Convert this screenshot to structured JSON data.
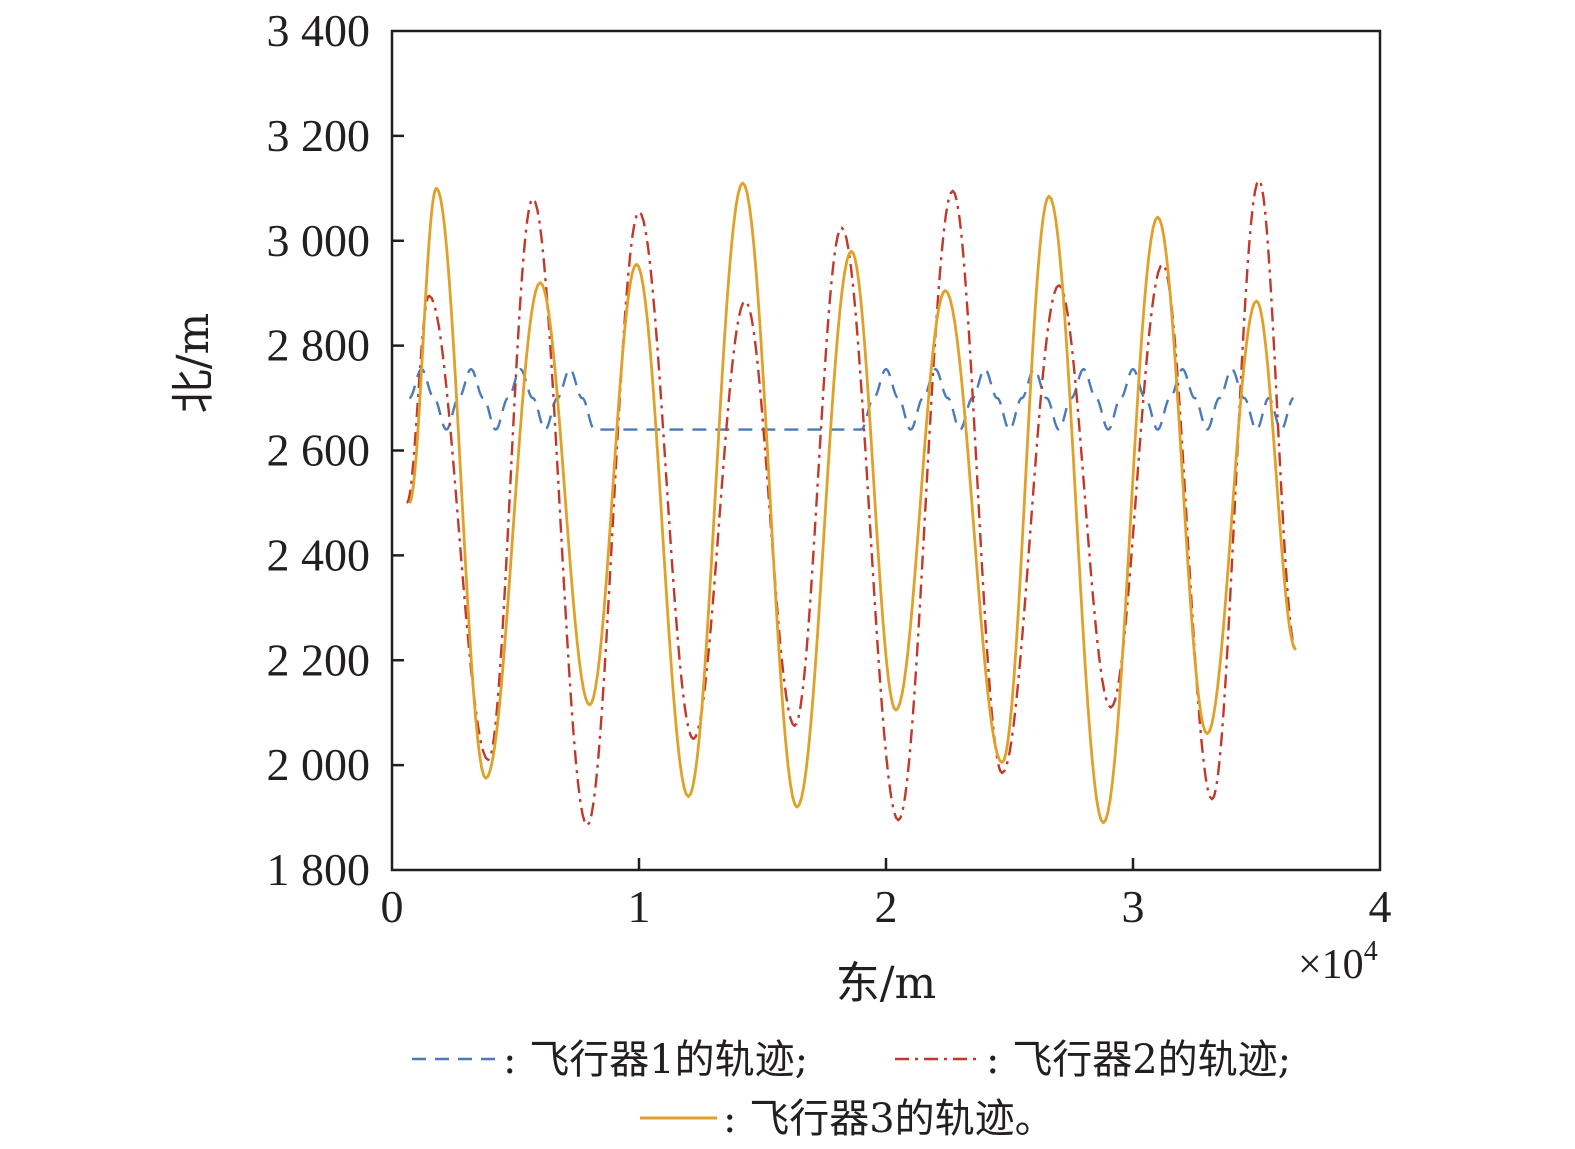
{
  "chart_data": {
    "type": "line",
    "xlabel": "东/m",
    "ylabel": "北/m",
    "x_multiplier": "×10",
    "x_multiplier_exp": "4",
    "xlim": [
      0,
      4
    ],
    "ylim": [
      1800,
      3400
    ],
    "x_ticks": [
      "0",
      "1",
      "2",
      "3",
      "4"
    ],
    "y_ticks": [
      "1 800",
      "2 000",
      "2 200",
      "2 400",
      "2 600",
      "2 800",
      "3 000",
      "3 200",
      "3 400"
    ],
    "legend_placement": "bottom",
    "series": [
      {
        "name": "飞行器1的轨迹;",
        "legend_label": ": 飞行器1的轨迹;",
        "color": "#4a7bb7",
        "style": "dashed",
        "x": [
          0.07,
          0.12,
          0.17,
          0.22,
          0.27,
          0.32,
          0.37,
          0.42,
          0.47,
          0.52,
          0.57,
          0.62,
          0.67,
          0.72,
          0.77,
          0.82,
          0.87,
          0.92,
          0.95,
          1.2,
          1.5,
          1.8,
          1.9,
          1.95,
          2.0,
          2.05,
          2.1,
          2.15,
          2.2,
          2.25,
          2.3,
          2.35,
          2.4,
          2.45,
          2.5,
          2.55,
          2.6,
          2.65,
          2.7,
          2.75,
          2.8,
          2.85,
          2.9,
          2.95,
          3.0,
          3.05,
          3.1,
          3.15,
          3.2,
          3.25,
          3.3,
          3.35,
          3.4,
          3.45,
          3.5,
          3.55,
          3.6,
          3.65
        ],
        "y": [
          2700,
          2755,
          2700,
          2640,
          2700,
          2755,
          2700,
          2640,
          2700,
          2755,
          2700,
          2640,
          2700,
          2755,
          2700,
          2640,
          2640,
          2640,
          2640,
          2640,
          2640,
          2640,
          2640,
          2700,
          2755,
          2700,
          2640,
          2700,
          2755,
          2700,
          2640,
          2700,
          2755,
          2700,
          2640,
          2700,
          2755,
          2700,
          2640,
          2700,
          2755,
          2700,
          2640,
          2700,
          2755,
          2700,
          2640,
          2700,
          2755,
          2700,
          2640,
          2700,
          2755,
          2700,
          2640,
          2700,
          2640,
          2700
        ]
      },
      {
        "name": "飞行器2的轨迹;",
        "legend_label": ": 飞行器2的轨迹;",
        "color": "#c0392b",
        "style": "dashdot",
        "x": [
          0.06,
          0.15,
          0.39,
          0.57,
          0.79,
          1.0,
          1.22,
          1.43,
          1.63,
          1.82,
          2.05,
          2.27,
          2.47,
          2.7,
          2.91,
          3.12,
          3.32,
          3.51,
          3.66
        ],
        "y": [
          2500,
          2895,
          2010,
          3080,
          1885,
          3055,
          2050,
          2885,
          2075,
          3025,
          1895,
          3095,
          1985,
          2915,
          2110,
          2955,
          1935,
          3115,
          2220
        ]
      },
      {
        "name": "飞行器3的轨迹。",
        "legend_label": ": 飞行器3的轨迹。",
        "color": "#e0a12a",
        "style": "solid",
        "x": [
          0.07,
          0.18,
          0.38,
          0.6,
          0.8,
          0.99,
          1.2,
          1.42,
          1.64,
          1.86,
          2.04,
          2.24,
          2.47,
          2.66,
          2.88,
          3.1,
          3.3,
          3.5,
          3.66
        ],
        "y": [
          2500,
          3100,
          1975,
          2920,
          2115,
          2955,
          1940,
          3110,
          1920,
          2980,
          2105,
          2905,
          2005,
          3085,
          1890,
          3045,
          2060,
          2885,
          2220
        ]
      }
    ]
  }
}
